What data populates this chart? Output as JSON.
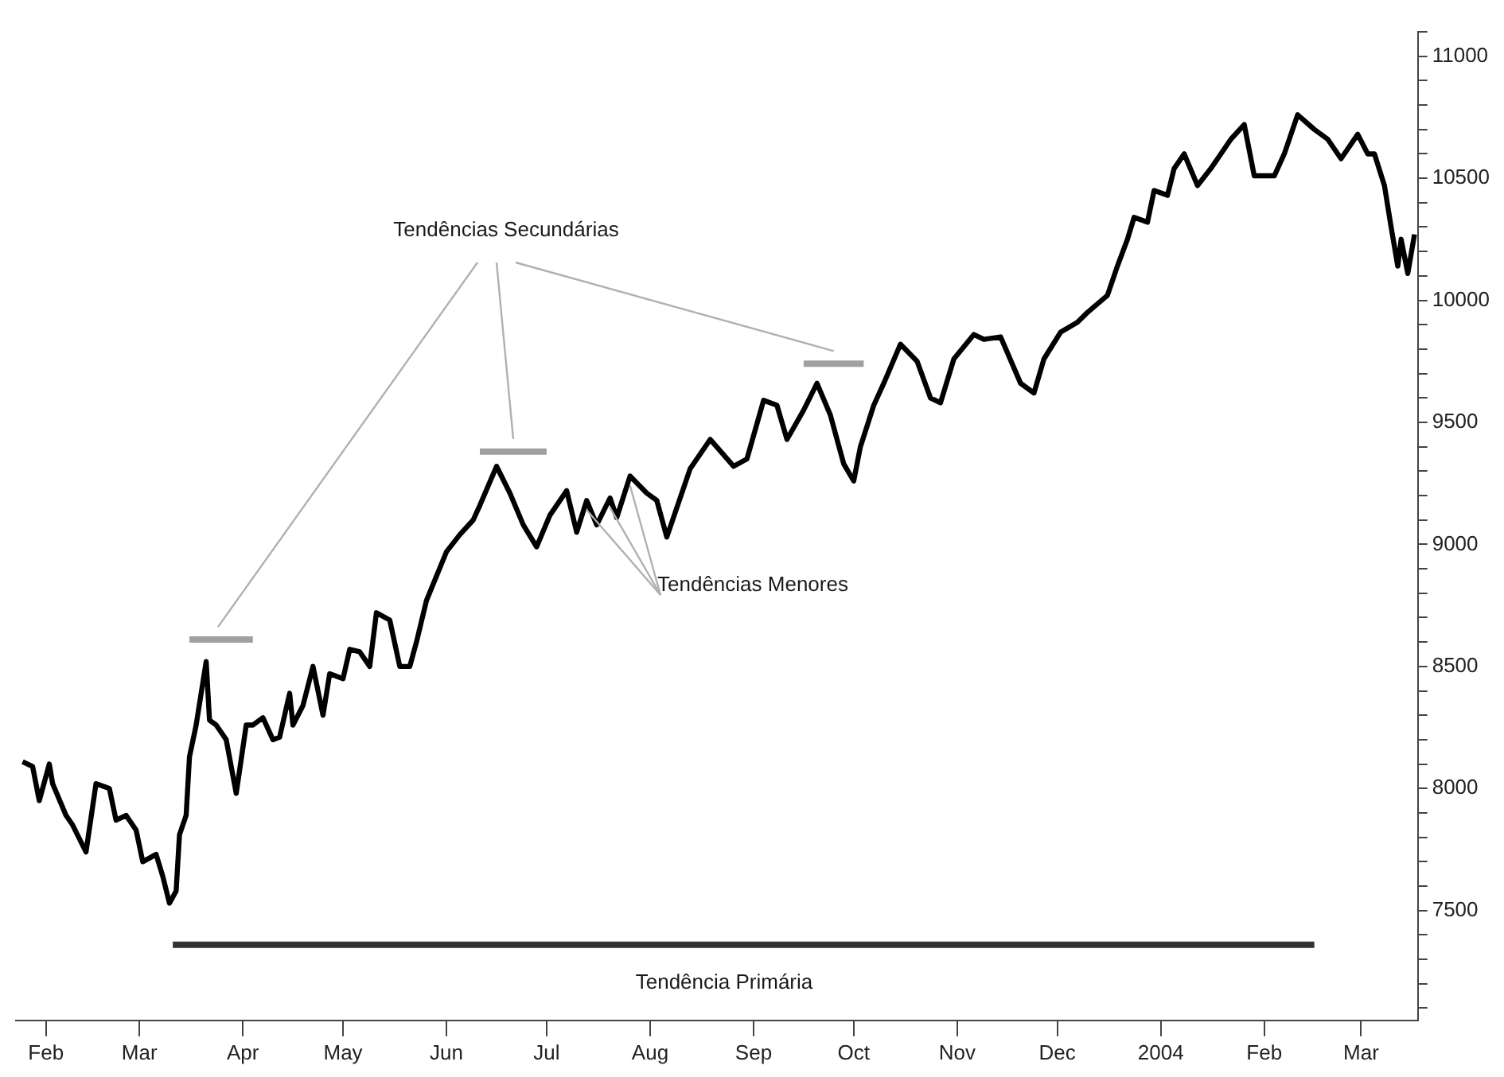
{
  "chart_data": {
    "type": "line",
    "xlim": [
      "2003-01-23",
      "2004-03-18"
    ],
    "ylim": [
      7050,
      11100
    ],
    "xticks": [
      {
        "value": "2003-02-01",
        "label": "Feb"
      },
      {
        "value": "2003-03-01",
        "label": "Mar"
      },
      {
        "value": "2003-04-01",
        "label": "Apr"
      },
      {
        "value": "2003-05-01",
        "label": "May"
      },
      {
        "value": "2003-06-01",
        "label": "Jun"
      },
      {
        "value": "2003-07-01",
        "label": "Jul"
      },
      {
        "value": "2003-08-01",
        "label": "Aug"
      },
      {
        "value": "2003-09-01",
        "label": "Sep"
      },
      {
        "value": "2003-10-01",
        "label": "Oct"
      },
      {
        "value": "2003-11-01",
        "label": "Nov"
      },
      {
        "value": "2003-12-01",
        "label": "Dec"
      },
      {
        "value": "2004-01-01",
        "label": "2004"
      },
      {
        "value": "2004-02-01",
        "label": "Feb"
      },
      {
        "value": "2004-03-01",
        "label": "Mar"
      }
    ],
    "yticks": [
      {
        "value": 7100,
        "label": null
      },
      {
        "value": 7200,
        "label": null
      },
      {
        "value": 7300,
        "label": null
      },
      {
        "value": 7400,
        "label": null
      },
      7500,
      {
        "value": 7600,
        "label": null
      },
      {
        "value": 7700,
        "label": null
      },
      {
        "value": 7800,
        "label": null
      },
      {
        "value": 7900,
        "label": null
      },
      8000,
      {
        "value": 8100,
        "label": null
      },
      {
        "value": 8200,
        "label": null
      },
      {
        "value": 8300,
        "label": null
      },
      {
        "value": 8400,
        "label": null
      },
      8500,
      {
        "value": 8600,
        "label": null
      },
      {
        "value": 8700,
        "label": null
      },
      {
        "value": 8800,
        "label": null
      },
      {
        "value": 8900,
        "label": null
      },
      9000,
      {
        "value": 9100,
        "label": null
      },
      {
        "value": 9200,
        "label": null
      },
      {
        "value": 9300,
        "label": null
      },
      {
        "value": 9400,
        "label": null
      },
      9500,
      {
        "value": 9600,
        "label": null
      },
      {
        "value": 9700,
        "label": null
      },
      {
        "value": 9800,
        "label": null
      },
      {
        "value": 9900,
        "label": null
      },
      10000,
      {
        "value": 10100,
        "label": null
      },
      {
        "value": 10200,
        "label": null
      },
      {
        "value": 10300,
        "label": null
      },
      {
        "value": 10400,
        "label": null
      },
      10500,
      {
        "value": 10600,
        "label": null
      },
      {
        "value": 10700,
        "label": null
      },
      {
        "value": 10800,
        "label": null
      },
      {
        "value": 10900,
        "label": null
      },
      11000,
      {
        "value": 11100,
        "label": null
      }
    ],
    "legend": false,
    "grid": false,
    "annotations": [
      "Tendências Secundárias",
      {
        "text": "Tendências Menores",
        "x": "2003-07-20",
        "y": 9190
      },
      "Tendência Primária"
    ],
    "series": [
      {
        "color": "#000000",
        "x": [
          "2003-01-25",
          "2003-01-28",
          "2003-01-30",
          "2003-02-02",
          "2003-02-03",
          "2003-02-07",
          "2003-02-09",
          "2003-02-13",
          "2003-02-16",
          "2003-02-20",
          "2003-02-22",
          "2003-02-25",
          "2003-02-28",
          "2003-03-02",
          "2003-03-06",
          "2003-03-08",
          "2003-03-10",
          "2003-03-12",
          "2003-03-13",
          "2003-03-15",
          "2003-03-16",
          "2003-03-18",
          "2003-03-21",
          "2003-03-22",
          "2003-03-24",
          "2003-03-27",
          "2003-03-30",
          "2003-04-02",
          "2003-04-04",
          "2003-04-07",
          "2003-04-10",
          "2003-04-12",
          "2003-04-15",
          "2003-04-16",
          "2003-04-19",
          "2003-04-22",
          "2003-04-25",
          "2003-04-27",
          "2003-05-01",
          "2003-05-03",
          "2003-05-06",
          "2003-05-09",
          "2003-05-11",
          "2003-05-15",
          "2003-05-18",
          "2003-05-21",
          "2003-05-23",
          "2003-05-26",
          "2003-05-29",
          "2003-06-01",
          "2003-06-05",
          "2003-06-09",
          "2003-06-11",
          "2003-06-16",
          "2003-06-20",
          "2003-06-24",
          "2003-06-28",
          "2003-07-02",
          "2003-07-07",
          "2003-07-10",
          "2003-07-13",
          "2003-07-16",
          "2003-07-20",
          "2003-07-22",
          "2003-07-26",
          "2003-07-31",
          "2003-08-03",
          "2003-08-06",
          "2003-08-13",
          "2003-08-19",
          "2003-08-26",
          "2003-08-30",
          "2003-09-04",
          "2003-09-08",
          "2003-09-11",
          "2003-09-16",
          "2003-09-20",
          "2003-09-24",
          "2003-09-28",
          "2003-10-01",
          "2003-10-03",
          "2003-10-07",
          "2003-10-10",
          "2003-10-15",
          "2003-10-20",
          "2003-10-24",
          "2003-10-27",
          "2003-10-31",
          "2003-11-06",
          "2003-11-09",
          "2003-11-14",
          "2003-11-20",
          "2003-11-24",
          "2003-11-27",
          "2003-12-02",
          "2003-12-07",
          "2003-12-10",
          "2003-12-16",
          "2003-12-19",
          "2003-12-22",
          "2003-12-24",
          "2003-12-28",
          "2003-12-30",
          "2004-01-03",
          "2004-01-05",
          "2004-01-08",
          "2004-01-12",
          "2004-01-16",
          "2004-01-19",
          "2004-01-22",
          "2004-01-26",
          "2004-01-29",
          "2004-02-04",
          "2004-02-07",
          "2004-02-11",
          "2004-02-16",
          "2004-02-20",
          "2004-02-24",
          "2004-02-29",
          "2004-03-03",
          "2004-03-05",
          "2004-03-08",
          "2004-03-10",
          "2004-03-12",
          "2004-03-13",
          "2004-03-15",
          "2004-03-17"
        ],
        "values": [
          8110,
          8090,
          7950,
          8100,
          8020,
          7890,
          7850,
          7740,
          8020,
          8000,
          7870,
          7890,
          7830,
          7700,
          7730,
          7640,
          7530,
          7580,
          7810,
          7890,
          8130,
          8260,
          8520,
          8280,
          8260,
          8200,
          7980,
          8260,
          8260,
          8290,
          8200,
          8210,
          8390,
          8260,
          8340,
          8500,
          8300,
          8470,
          8450,
          8570,
          8560,
          8500,
          8720,
          8690,
          8500,
          8500,
          8600,
          8770,
          8870,
          8970,
          9040,
          9100,
          9160,
          9320,
          9210,
          9080,
          8990,
          9120,
          9220,
          9050,
          9180,
          9080,
          9190,
          9110,
          9280,
          9210,
          9180,
          9030,
          9310,
          9430,
          9320,
          9350,
          9590,
          9570,
          9430,
          9550,
          9660,
          9530,
          9330,
          9260,
          9400,
          9570,
          9660,
          9820,
          9750,
          9600,
          9580,
          9760,
          9860,
          9840,
          9850,
          9660,
          9620,
          9760,
          9870,
          9910,
          9950,
          10020,
          10140,
          10250,
          10340,
          10320,
          10450,
          10430,
          10540,
          10600,
          10470,
          10540,
          10600,
          10660,
          10720,
          10510,
          10510,
          10600,
          10760,
          10700,
          10660,
          10580,
          10680,
          10600,
          10600,
          10470,
          10300,
          10140,
          10250,
          10110,
          10270
        ]
      },
      {
        "color": "#a0a0a0",
        "x": [
          "2003-03-16",
          "2003-04-04"
        ],
        "values": [
          8610,
          8610
        ]
      },
      {
        "color": "#a0a0a0",
        "x": [
          "2003-06-11",
          "2003-07-01"
        ],
        "values": [
          9380,
          9380
        ]
      },
      {
        "color": "#a0a0a0",
        "x": [
          "2003-09-16",
          "2003-10-04"
        ],
        "values": [
          9740,
          9740
        ]
      },
      {
        "color": "#333333",
        "x": [
          "2003-03-11",
          "2004-02-16"
        ],
        "values": [
          7360,
          7360
        ]
      }
    ]
  }
}
